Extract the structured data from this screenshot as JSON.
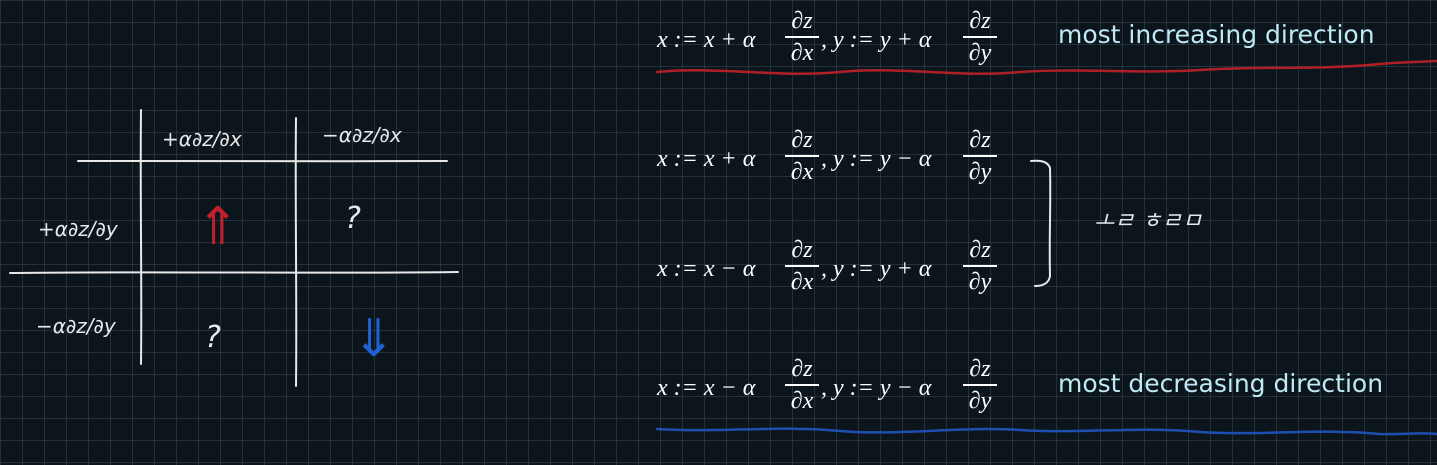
{
  "table": {
    "col_headers": [
      "+α∂z/∂x",
      "−α∂z/∂x"
    ],
    "row_headers": [
      "+α∂z/∂y",
      "−α∂z/∂y"
    ],
    "cells": [
      [
        "⇑",
        "?"
      ],
      [
        "?",
        "⇓"
      ]
    ]
  },
  "equations": [
    {
      "x_part": "x := x + α",
      "y_part": ", y := y + α",
      "num_x": "∂z",
      "den_x": "∂x",
      "num_y": "∂z",
      "den_y": "∂y"
    },
    {
      "x_part": "x := x + α",
      "y_part": ", y := y − α",
      "num_x": "∂z",
      "den_x": "∂x",
      "num_y": "∂z",
      "den_y": "∂y"
    },
    {
      "x_part": "x := x − α",
      "y_part": ", y := y + α",
      "num_x": "∂z",
      "den_x": "∂x",
      "num_y": "∂z",
      "den_y": "∂y"
    },
    {
      "x_part": "x := x − α",
      "y_part": ", y := y − α",
      "num_x": "∂z",
      "den_x": "∂x",
      "num_y": "∂z",
      "den_y": "∂y"
    }
  ],
  "captions": {
    "increasing": "most increasing direction",
    "decreasing": "most decreasing direction"
  },
  "bracket_note": "ㅗㄹ ㅎㄹㅁ",
  "colors": {
    "background": "#0b151b",
    "grid": "#3d4f58",
    "caption": "#bfeaf5",
    "up_arrow": "#c0202a",
    "down_arrow": "#2060d0",
    "underline_red": "#b01f28",
    "underline_blue": "#1e4fb0"
  }
}
